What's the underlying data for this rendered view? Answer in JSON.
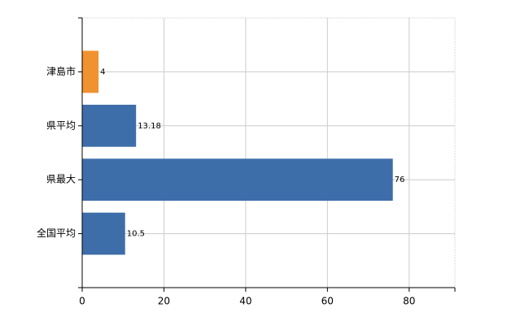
{
  "chart_data": {
    "type": "bar",
    "orientation": "horizontal",
    "categories": [
      "津島市",
      "県平均",
      "県最大",
      "全国平均"
    ],
    "values": [
      4,
      13.18,
      76,
      10.5
    ],
    "colors": [
      "#f0922f",
      "#3e6ea9",
      "#3e6ea9",
      "#3e6ea9"
    ],
    "xlim": [
      0,
      91.2
    ],
    "xticks": [
      0,
      20,
      40,
      60,
      80
    ],
    "grid": true
  }
}
